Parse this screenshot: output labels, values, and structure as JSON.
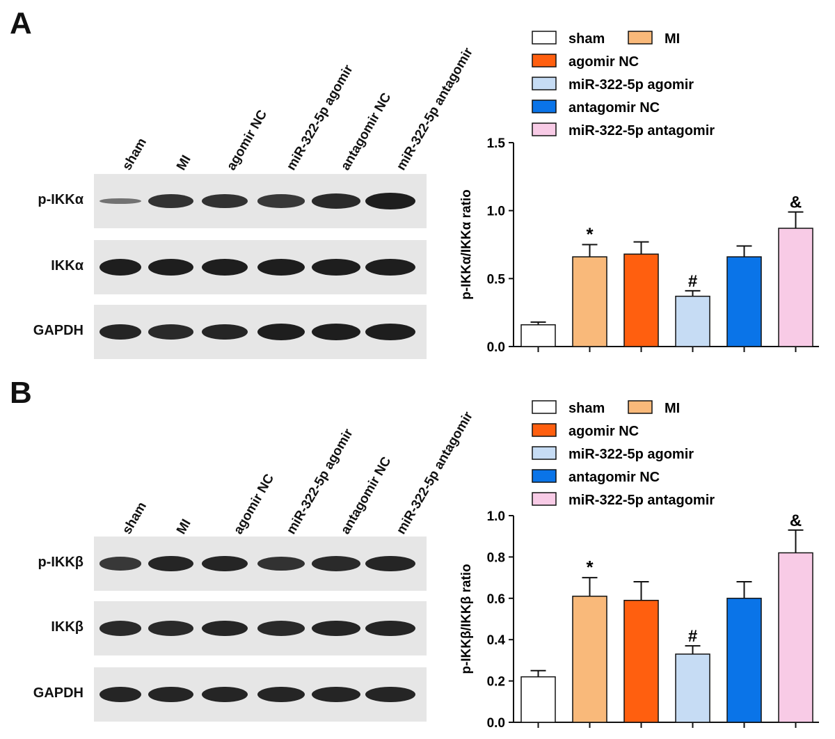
{
  "panels": [
    {
      "letter": "A",
      "lanes": [
        "sham",
        "MI",
        "agomir NC",
        "miR-322-5p agomir",
        "antagomir NC",
        "miR-322-5p antagomir"
      ],
      "blot_rows": [
        "p-IKKα",
        "IKKα",
        "GAPDH"
      ],
      "band_intensity": [
        [
          0.35,
          0.85,
          0.85,
          0.8,
          0.9,
          1.0
        ],
        [
          1.0,
          1.0,
          1.0,
          1.0,
          1.0,
          1.0
        ],
        [
          0.95,
          0.9,
          0.95,
          1.0,
          1.0,
          1.0
        ]
      ]
    },
    {
      "letter": "B",
      "lanes": [
        "sham",
        "MI",
        "agomir NC",
        "miR-322-5p agomir",
        "antagomir NC",
        "miR-322-5p antagomir"
      ],
      "blot_rows": [
        "p-IKKβ",
        "IKKβ",
        "GAPDH"
      ],
      "band_intensity": [
        [
          0.8,
          0.95,
          0.95,
          0.85,
          0.9,
          0.95
        ],
        [
          0.9,
          0.9,
          0.95,
          0.9,
          0.95,
          0.95
        ],
        [
          0.95,
          0.95,
          0.95,
          0.95,
          0.95,
          0.95
        ]
      ]
    }
  ],
  "chart_data": [
    {
      "type": "bar",
      "categories": [
        "sham",
        "MI",
        "agomir NC",
        "miR-322-5p agomir",
        "antagomir NC",
        "miR-322-5p antagomir"
      ],
      "values": [
        0.16,
        0.66,
        0.68,
        0.37,
        0.66,
        0.87
      ],
      "errors": [
        0.02,
        0.09,
        0.09,
        0.04,
        0.08,
        0.12
      ],
      "annotations": [
        "",
        "*",
        "",
        "#",
        "",
        "&"
      ],
      "colors": [
        "#ffffff",
        "#f9b97a",
        "#ff5f0f",
        "#c6dcf4",
        "#0a74e8",
        "#f8cbe6"
      ],
      "ylabel": "p-IKKα/IKKα ratio",
      "ylim": [
        0,
        1.5
      ],
      "yticks": [
        "0.0",
        "0.5",
        "1.0",
        "1.5"
      ],
      "legend": [
        "sham",
        "MI",
        "agomir NC",
        "miR-322-5p agomir",
        "antagomir NC",
        "miR-322-5p antagomir"
      ],
      "legend_placement": "top"
    },
    {
      "type": "bar",
      "categories": [
        "sham",
        "MI",
        "agomir NC",
        "miR-322-5p agomir",
        "antagomir NC",
        "miR-322-5p antagomir"
      ],
      "values": [
        0.22,
        0.61,
        0.59,
        0.33,
        0.6,
        0.82
      ],
      "errors": [
        0.03,
        0.09,
        0.09,
        0.04,
        0.08,
        0.11
      ],
      "annotations": [
        "",
        "*",
        "",
        "#",
        "",
        "&"
      ],
      "colors": [
        "#ffffff",
        "#f9b97a",
        "#ff5f0f",
        "#c6dcf4",
        "#0a74e8",
        "#f8cbe6"
      ],
      "ylabel": "p-IKKβ/IKKβ ratio",
      "ylim": [
        0,
        1.0
      ],
      "yticks": [
        "0.0",
        "0.2",
        "0.4",
        "0.6",
        "0.8",
        "1.0"
      ],
      "legend": [
        "sham",
        "MI",
        "agomir NC",
        "miR-322-5p agomir",
        "antagomir NC",
        "miR-322-5p antagomir"
      ],
      "legend_placement": "top"
    }
  ]
}
